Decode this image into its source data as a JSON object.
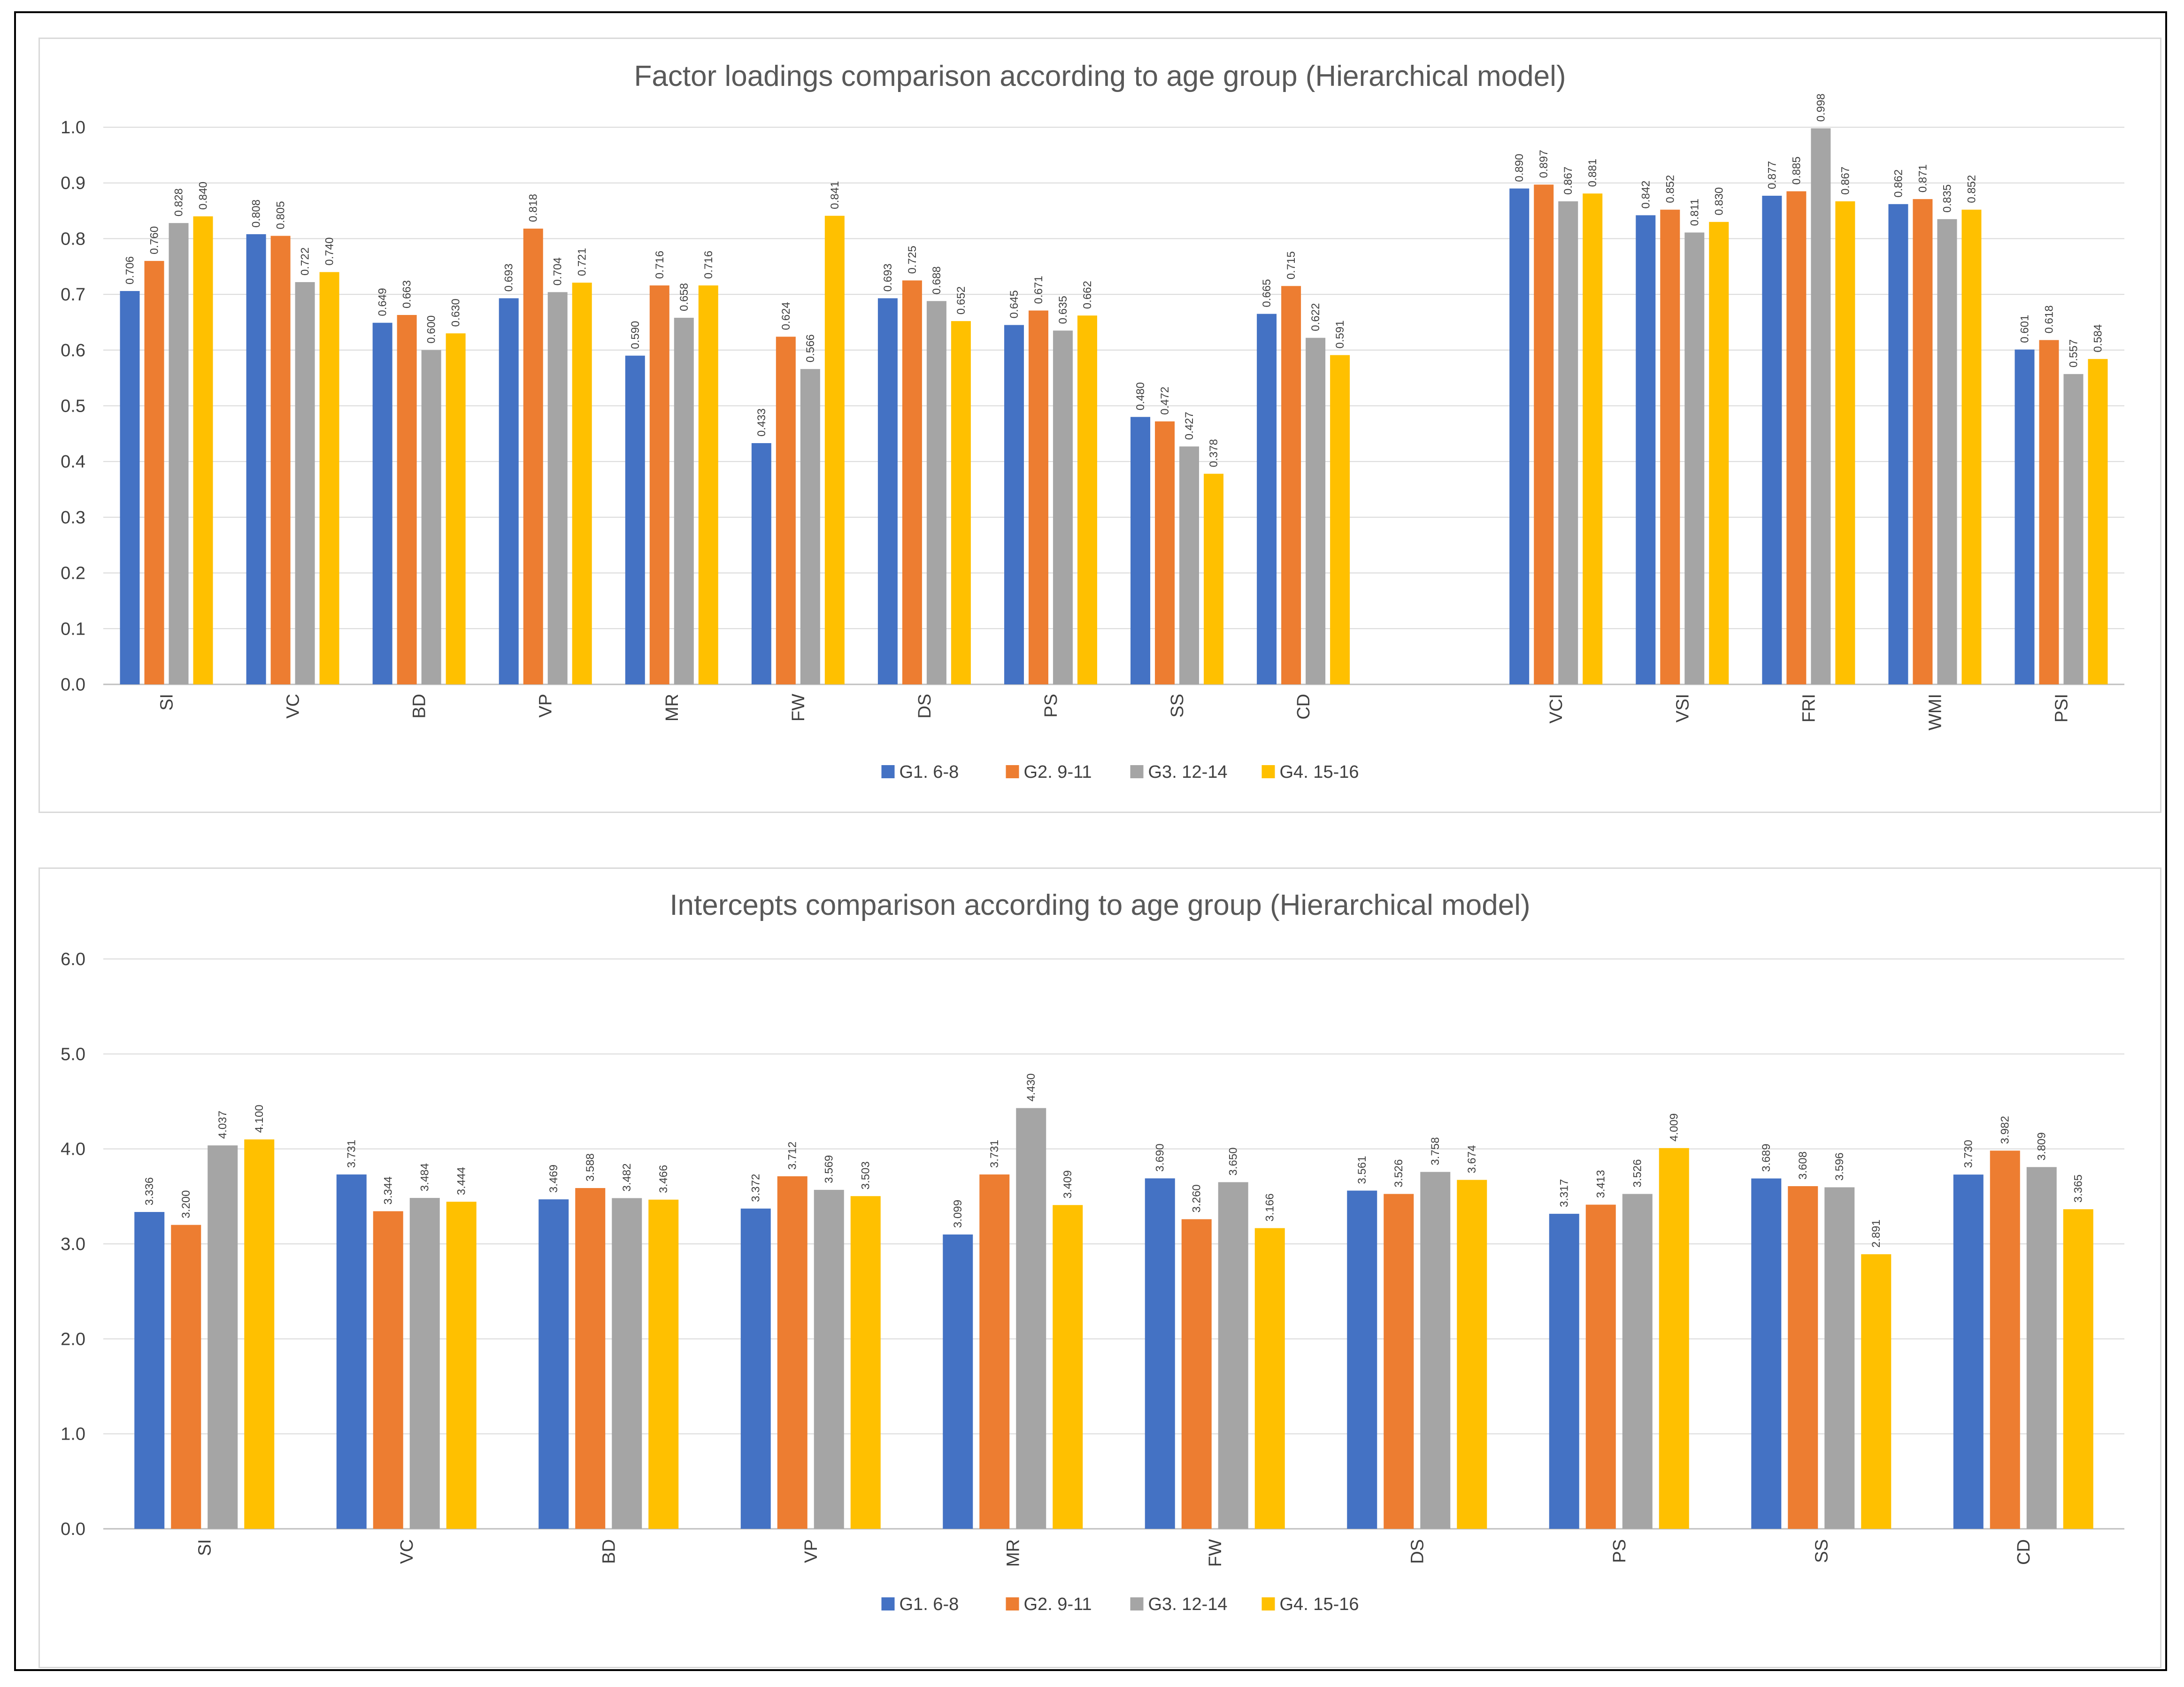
{
  "chart_data": [
    {
      "type": "bar",
      "title": "Factor loadings comparison according to age group (Hierarchical model)",
      "xlabel": "",
      "ylabel": "",
      "ylim": [
        0,
        1.0
      ],
      "yticks": [
        "0.0",
        "0.1",
        "0.2",
        "0.3",
        "0.4",
        "0.5",
        "0.6",
        "0.7",
        "0.8",
        "0.9",
        "1.0"
      ],
      "grid": true,
      "legend_position": "bottom",
      "categories": [
        "SI",
        "VC",
        "BD",
        "VP",
        "MR",
        "FW",
        "DS",
        "PS",
        "SS",
        "CD",
        "VCI",
        "VSI",
        "FRI",
        "WMI",
        "PSI"
      ],
      "series": [
        {
          "name": "G1. 6-8",
          "color": "#4472C4",
          "values": [
            0.706,
            0.808,
            0.649,
            0.693,
            0.59,
            0.433,
            0.693,
            0.645,
            0.48,
            0.665,
            0.89,
            0.842,
            0.877,
            0.862,
            0.601
          ],
          "labels": [
            "0.706",
            "0.808",
            "0.649",
            "0.693",
            "0.590",
            "0.433",
            "0.693",
            "0.645",
            "0.480",
            "0.665",
            "0.890",
            "0.842",
            "0.877",
            "0.862",
            "0.601"
          ]
        },
        {
          "name": "G2. 9-11",
          "color": "#ED7D31",
          "values": [
            0.76,
            0.805,
            0.663,
            0.818,
            0.716,
            0.624,
            0.725,
            0.671,
            0.472,
            0.715,
            0.897,
            0.852,
            0.885,
            0.871,
            0.618
          ],
          "labels": [
            "0.760",
            "0.805",
            "0.663",
            "0.818",
            "0.716",
            "0.624",
            "0.725",
            "0.671",
            "0.472",
            "0.715",
            "0.897",
            "0.852",
            "0.885",
            "0.871",
            "0.618"
          ]
        },
        {
          "name": "G3. 12-14",
          "color": "#A5A5A5",
          "values": [
            0.828,
            0.722,
            0.6,
            0.704,
            0.658,
            0.566,
            0.688,
            0.635,
            0.427,
            0.622,
            0.867,
            0.811,
            0.998,
            0.835,
            0.557
          ],
          "labels": [
            "0.828",
            "0.722",
            "0.600",
            "0.704",
            "0.658",
            "0.566",
            "0.688",
            "0.635",
            "0.427",
            "0.622",
            "0.867",
            "0.811",
            "0.998",
            "0.835",
            "0.557"
          ]
        },
        {
          "name": "G4. 15-16",
          "color": "#FFC000",
          "values": [
            0.84,
            0.74,
            0.63,
            0.721,
            0.716,
            0.841,
            0.652,
            0.662,
            0.378,
            0.591,
            0.881,
            0.83,
            0.867,
            0.852,
            0.584
          ],
          "labels": [
            "0.840",
            "0.740",
            "0.630",
            "0.721",
            "0.716",
            "0.841",
            "0.652",
            "0.662",
            "0.378",
            "0.591",
            "0.881",
            "0.830",
            "0.867",
            "0.852",
            "0.584"
          ]
        }
      ]
    },
    {
      "type": "bar",
      "title": "Intercepts comparison according to age group (Hierarchical model)",
      "xlabel": "",
      "ylabel": "",
      "ylim": [
        0,
        6.0
      ],
      "yticks": [
        "0.0",
        "1.0",
        "2.0",
        "3.0",
        "4.0",
        "5.0",
        "6.0"
      ],
      "grid": true,
      "legend_position": "bottom",
      "categories": [
        "SI",
        "VC",
        "BD",
        "VP",
        "MR",
        "FW",
        "DS",
        "PS",
        "SS",
        "CD"
      ],
      "series": [
        {
          "name": "G1. 6-8",
          "color": "#4472C4",
          "values": [
            3.336,
            3.731,
            3.469,
            3.372,
            3.099,
            3.69,
            3.561,
            3.317,
            3.689,
            3.73
          ],
          "labels": [
            "3.336",
            "3.731",
            "3.469",
            "3.372",
            "3.099",
            "3.690",
            "3.561",
            "3.317",
            "3.689",
            "3.730"
          ]
        },
        {
          "name": "G2. 9-11",
          "color": "#ED7D31",
          "values": [
            3.2,
            3.344,
            3.588,
            3.712,
            3.731,
            3.26,
            3.526,
            3.413,
            3.608,
            3.982
          ],
          "labels": [
            "3.200",
            "3.344",
            "3.588",
            "3.712",
            "3.731",
            "3.260",
            "3.526",
            "3.413",
            "3.608",
            "3.982"
          ]
        },
        {
          "name": "G3. 12-14",
          "color": "#A5A5A5",
          "values": [
            4.037,
            3.484,
            3.482,
            3.569,
            4.43,
            3.65,
            3.758,
            3.526,
            3.596,
            3.809
          ],
          "labels": [
            "4.037",
            "3.484",
            "3.482",
            "3.569",
            "4.430",
            "3.650",
            "3.758",
            "3.526",
            "3.596",
            "3.809"
          ]
        },
        {
          "name": "G4. 15-16",
          "color": "#FFC000",
          "values": [
            4.1,
            3.444,
            3.466,
            3.503,
            3.409,
            3.166,
            3.674,
            4.009,
            2.891,
            3.365
          ],
          "labels": [
            "4.100",
            "3.444",
            "3.466",
            "3.503",
            "3.409",
            "3.166",
            "3.674",
            "4.009",
            "2.891",
            "3.365"
          ]
        }
      ]
    }
  ]
}
